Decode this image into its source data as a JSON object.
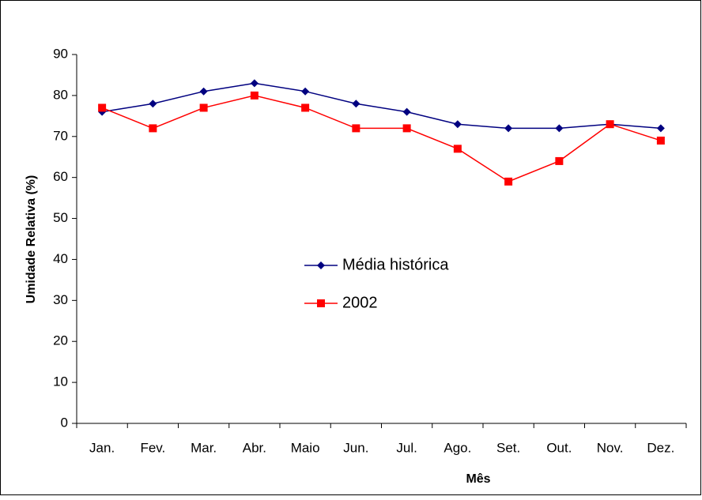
{
  "chart_data": {
    "type": "line",
    "categories": [
      "Jan.",
      "Fev.",
      "Mar.",
      "Abr.",
      "Maio",
      "Jun.",
      "Jul.",
      "Ago.",
      "Set.",
      "Out.",
      "Nov.",
      "Dez."
    ],
    "series": [
      {
        "name": "Média histórica",
        "color": "#000080",
        "marker": "diamond",
        "values": [
          76,
          78,
          81,
          83,
          81,
          78,
          76,
          73,
          72,
          72,
          73,
          72
        ]
      },
      {
        "name": "2002",
        "color": "#ff0000",
        "marker": "square",
        "values": [
          77,
          72,
          77,
          80,
          77,
          72,
          72,
          67,
          59,
          64,
          73,
          69
        ]
      }
    ],
    "x_label": "Mês",
    "y_label": "Umidade Relativa (%)",
    "ylim": [
      0,
      90
    ],
    "yticks": [
      0,
      10,
      20,
      30,
      40,
      50,
      60,
      70,
      80,
      90
    ],
    "grid": false,
    "legend": "center"
  }
}
